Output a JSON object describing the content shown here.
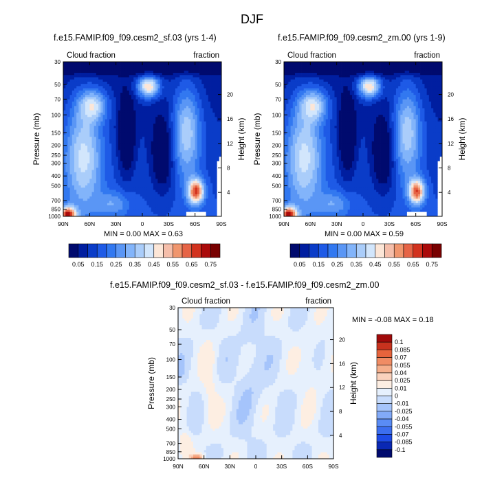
{
  "figure_title": "DJF",
  "colors": {
    "abs_scale": [
      "#000a6e",
      "#001ea0",
      "#0a3cc8",
      "#1e5ae6",
      "#3278f0",
      "#5a96f5",
      "#82b4fa",
      "#aacdfa",
      "#d2e6fc",
      "#fce6d7",
      "#f5beaa",
      "#f0966e",
      "#e66446",
      "#d2321e",
      "#aa0a0a",
      "#780000"
    ],
    "diff_scale": [
      "#000a6e",
      "#0a28b4",
      "#1e4be6",
      "#3c6eef",
      "#5a8cf5",
      "#82aaf8",
      "#a5c4fb",
      "#c8dcfc",
      "#e6f0fd",
      "#fdeee2",
      "#fad2bd",
      "#f5af8c",
      "#f08c64",
      "#e6643c",
      "#c8321e",
      "#a00a0a"
    ]
  },
  "chart_data": [
    {
      "type": "heatmap",
      "title": "f.e15.FAMIP.f09_f09.cesm2_sf.03 (yrs 1-4)",
      "left_label": "Cloud fraction",
      "right_label": "fraction",
      "ylabel": "Pressure (mb)",
      "y2label": "Height (km)",
      "x_ticks": [
        "90N",
        "60N",
        "30N",
        "0",
        "30S",
        "60S",
        "90S"
      ],
      "y_ticks": [
        "30",
        "50",
        "70",
        "100",
        "150",
        "200",
        "250",
        "300",
        "400",
        "500",
        "700",
        "850",
        "1000"
      ],
      "y2_ticks": [
        "20",
        "16",
        "12",
        "8",
        "4"
      ],
      "stats": {
        "min": "0.00",
        "max": "0.63"
      },
      "stats_text": "MIN =   0.00   MAX =   0.63",
      "colorbar_labels": [
        "0.05",
        "0.15",
        "0.25",
        "0.35",
        "0.45",
        "0.55",
        "0.65",
        "0.75"
      ]
    },
    {
      "type": "heatmap",
      "title": "f.e15.FAMIP.f09_f09.cesm2_zm.00 (yrs 1-9)",
      "left_label": "Cloud fraction",
      "right_label": "fraction",
      "ylabel": "Pressure (mb)",
      "y2label": "Height (km)",
      "x_ticks": [
        "90N",
        "60N",
        "30N",
        "0",
        "30S",
        "60S",
        "90S"
      ],
      "y_ticks": [
        "30",
        "50",
        "70",
        "100",
        "150",
        "200",
        "250",
        "300",
        "400",
        "500",
        "700",
        "850",
        "1000"
      ],
      "y2_ticks": [
        "20",
        "16",
        "12",
        "8",
        "4"
      ],
      "stats": {
        "min": "0.00",
        "max": "0.59"
      },
      "stats_text": "MIN =   0.00   MAX =   0.59",
      "colorbar_labels": [
        "0.05",
        "0.15",
        "0.25",
        "0.35",
        "0.45",
        "0.55",
        "0.65",
        "0.75"
      ]
    },
    {
      "type": "heatmap",
      "title": "f.e15.FAMIP.f09_f09.cesm2_sf.03 - f.e15.FAMIP.f09_f09.cesm2_zm.00",
      "left_label": "Cloud fraction",
      "right_label": "fraction",
      "ylabel": "Pressure (mb)",
      "y2label": "Height (km)",
      "x_ticks": [
        "90N",
        "60N",
        "30N",
        "0",
        "30S",
        "60S",
        "90S"
      ],
      "y_ticks": [
        "30",
        "50",
        "70",
        "100",
        "150",
        "200",
        "250",
        "300",
        "400",
        "500",
        "700",
        "850",
        "1000"
      ],
      "y2_ticks": [
        "20",
        "16",
        "12",
        "8",
        "4"
      ],
      "stats": {
        "min": "-0.08",
        "max": "0.18"
      },
      "stats_text": "MIN =  -0.08   MAX =   0.18",
      "colorbar_labels": [
        "0.1",
        "0.085",
        "0.07",
        "0.055",
        "0.04",
        "0.025",
        "0.01",
        "0",
        "-0.01",
        "-0.025",
        "-0.04",
        "-0.055",
        "-0.07",
        "-0.085",
        "-0.1"
      ]
    }
  ]
}
